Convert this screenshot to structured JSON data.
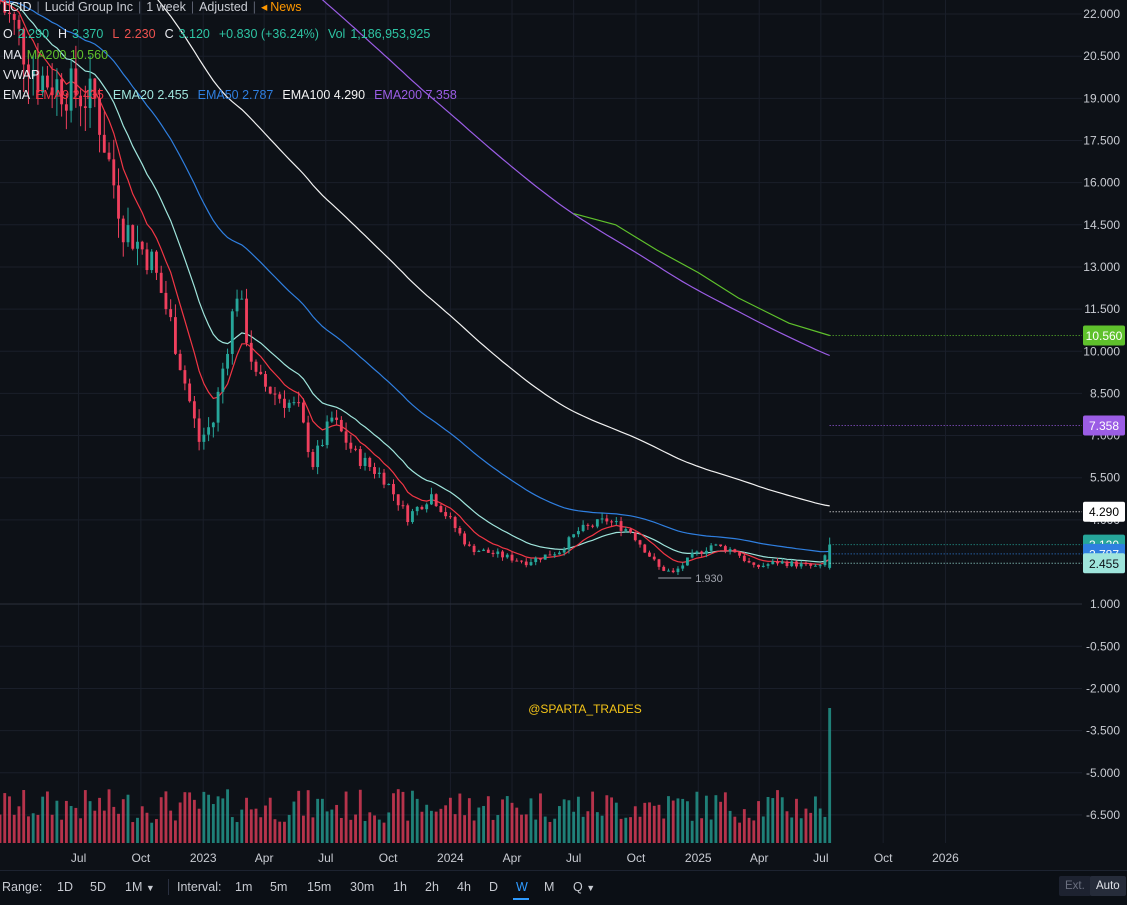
{
  "header": {
    "symbol": "LCID",
    "company": "Lucid Group Inc",
    "interval": "1 week",
    "adjustment": "Adjusted",
    "news_label": "News",
    "news_icon": "megaphone-icon",
    "ohlc": {
      "o_label": "O",
      "o": "2.290",
      "h_label": "H",
      "h": "3.370",
      "l_label": "L",
      "l": "2.230",
      "c_label": "C",
      "c": "3.120",
      "change": "+0.830 (+36.24%)",
      "vol_label": "Vol",
      "vol": "1,186,953,925"
    },
    "ma": {
      "label": "MA",
      "item": "MA200 10.560"
    },
    "vwap": {
      "label": "VWAP"
    },
    "ema": {
      "label": "EMA",
      "items": [
        "EMA9 2.435",
        "EMA20 2.455",
        "EMA50 2.787",
        "EMA100 4.290",
        "EMA200 7.358"
      ]
    }
  },
  "colors": {
    "background": "#0d1117",
    "up": "#26a69a",
    "down": "#ef3f5d",
    "ema9": "#f23645",
    "ema20": "#9fe5dc",
    "ema50": "#2f7fe0",
    "ema100": "#f2f2f2",
    "ema200": "#9b5de5",
    "ma200": "#5fc12c",
    "watermark": "#f5c518"
  },
  "watermark": "@SPARTA_TRADES",
  "low_marker": "1.930",
  "price_tags": [
    {
      "value": 10.56,
      "text": "10.560",
      "bg": "#5fc12c",
      "fg": "#ffffff"
    },
    {
      "value": 7.358,
      "text": "7.358",
      "bg": "#9b5de5",
      "fg": "#ffffff"
    },
    {
      "value": 4.29,
      "text": "4.290",
      "bg": "#ffffff",
      "fg": "#000000"
    },
    {
      "value": 3.12,
      "text": "3.120",
      "bg": "#26a69a",
      "fg": "#ffffff"
    },
    {
      "value": 2.787,
      "text": "2.787",
      "bg": "#2f7fe0",
      "fg": "#ffffff"
    },
    {
      "value": 2.455,
      "text": "2.455",
      "bg": "#9fe5dc",
      "fg": "#0d1117"
    }
  ],
  "bottom_bar": {
    "range_label": "Range:",
    "ranges": [
      "1D",
      "5D",
      "1M"
    ],
    "interval_label": "Interval:",
    "intervals": [
      "1m",
      "5m",
      "15m",
      "30m",
      "1h",
      "2h",
      "4h",
      "D",
      "W",
      "M",
      "Q"
    ],
    "active_interval": "W",
    "ext": "Ext.",
    "auto": "Auto"
  },
  "chart_data": {
    "type": "candlestick",
    "title": "LCID",
    "y_axis_ticks": [
      "22.000",
      "20.500",
      "19.000",
      "17.500",
      "16.000",
      "14.500",
      "13.000",
      "11.500",
      "10.000",
      "8.500",
      "7.000",
      "5.500",
      "4.000",
      "1.000",
      "-0.500",
      "-2.000",
      "-3.500",
      "-5.000",
      "-6.500"
    ],
    "y_axis_values": [
      22,
      20.5,
      19,
      17.5,
      16,
      14.5,
      13,
      11.5,
      10,
      8.5,
      7,
      5.5,
      4,
      1,
      -0.5,
      -2,
      -3.5,
      -5,
      -6.5
    ],
    "x_axis_ticks": [
      "Jul",
      "Oct",
      "2023",
      "Apr",
      "Jul",
      "Oct",
      "2024",
      "Apr",
      "Jul",
      "Oct",
      "2025",
      "Apr",
      "Jul",
      "Oct",
      "2026"
    ],
    "x_start": "2022-03-07",
    "x_end": "2026-12-31",
    "ylim": [
      -7.5,
      22.5
    ],
    "last": {
      "open": 2.29,
      "high": 3.37,
      "low": 2.23,
      "close": 3.12,
      "volume": 1186953925
    },
    "low_marker": {
      "date": "2024-11-25",
      "value": 1.93
    },
    "key_points": [
      {
        "date": "2022-03-07",
        "close": 22.5
      },
      {
        "date": "2022-05-02",
        "close": 19.8
      },
      {
        "date": "2022-07-25",
        "close": 18.9
      },
      {
        "date": "2022-09-05",
        "close": 14.5
      },
      {
        "date": "2022-10-17",
        "close": 13.2
      },
      {
        "date": "2022-11-14",
        "close": 11.0
      },
      {
        "date": "2022-12-26",
        "close": 6.8
      },
      {
        "date": "2023-01-16",
        "close": 7.5
      },
      {
        "date": "2023-02-20",
        "close": 12.2
      },
      {
        "date": "2023-03-20",
        "close": 9.0
      },
      {
        "date": "2023-04-17",
        "close": 8.5
      },
      {
        "date": "2023-05-22",
        "close": 7.9
      },
      {
        "date": "2023-06-12",
        "close": 6.0
      },
      {
        "date": "2023-07-10",
        "close": 7.6
      },
      {
        "date": "2023-08-14",
        "close": 6.3
      },
      {
        "date": "2023-09-25",
        "close": 5.5
      },
      {
        "date": "2023-10-30",
        "close": 4.1
      },
      {
        "date": "2023-12-04",
        "close": 4.9
      },
      {
        "date": "2023-12-25",
        "close": 4.2
      },
      {
        "date": "2024-01-29",
        "close": 3.0
      },
      {
        "date": "2024-03-04",
        "close": 2.8
      },
      {
        "date": "2024-04-22",
        "close": 2.5
      },
      {
        "date": "2024-06-10",
        "close": 2.9
      },
      {
        "date": "2024-07-08",
        "close": 3.6
      },
      {
        "date": "2024-08-19",
        "close": 4.0
      },
      {
        "date": "2024-09-23",
        "close": 3.6
      },
      {
        "date": "2024-11-04",
        "close": 2.3
      },
      {
        "date": "2024-11-25",
        "close": 2.1
      },
      {
        "date": "2024-12-23",
        "close": 2.7
      },
      {
        "date": "2025-01-20",
        "close": 3.1
      },
      {
        "date": "2025-02-24",
        "close": 2.9
      },
      {
        "date": "2025-03-24",
        "close": 2.3
      },
      {
        "date": "2025-04-28",
        "close": 2.5
      },
      {
        "date": "2025-06-02",
        "close": 2.4
      },
      {
        "date": "2025-06-30",
        "close": 2.3
      },
      {
        "date": "2025-07-14",
        "close": 3.12
      }
    ],
    "series": [
      {
        "name": "EMA9",
        "value": 2.435
      },
      {
        "name": "EMA20",
        "value": 2.455
      },
      {
        "name": "EMA50",
        "value": 2.787
      },
      {
        "name": "EMA100",
        "value": 4.29
      },
      {
        "name": "EMA200",
        "value": 7.358
      },
      {
        "name": "MA200",
        "value": 10.56
      }
    ],
    "volume_max": 1186953925
  }
}
